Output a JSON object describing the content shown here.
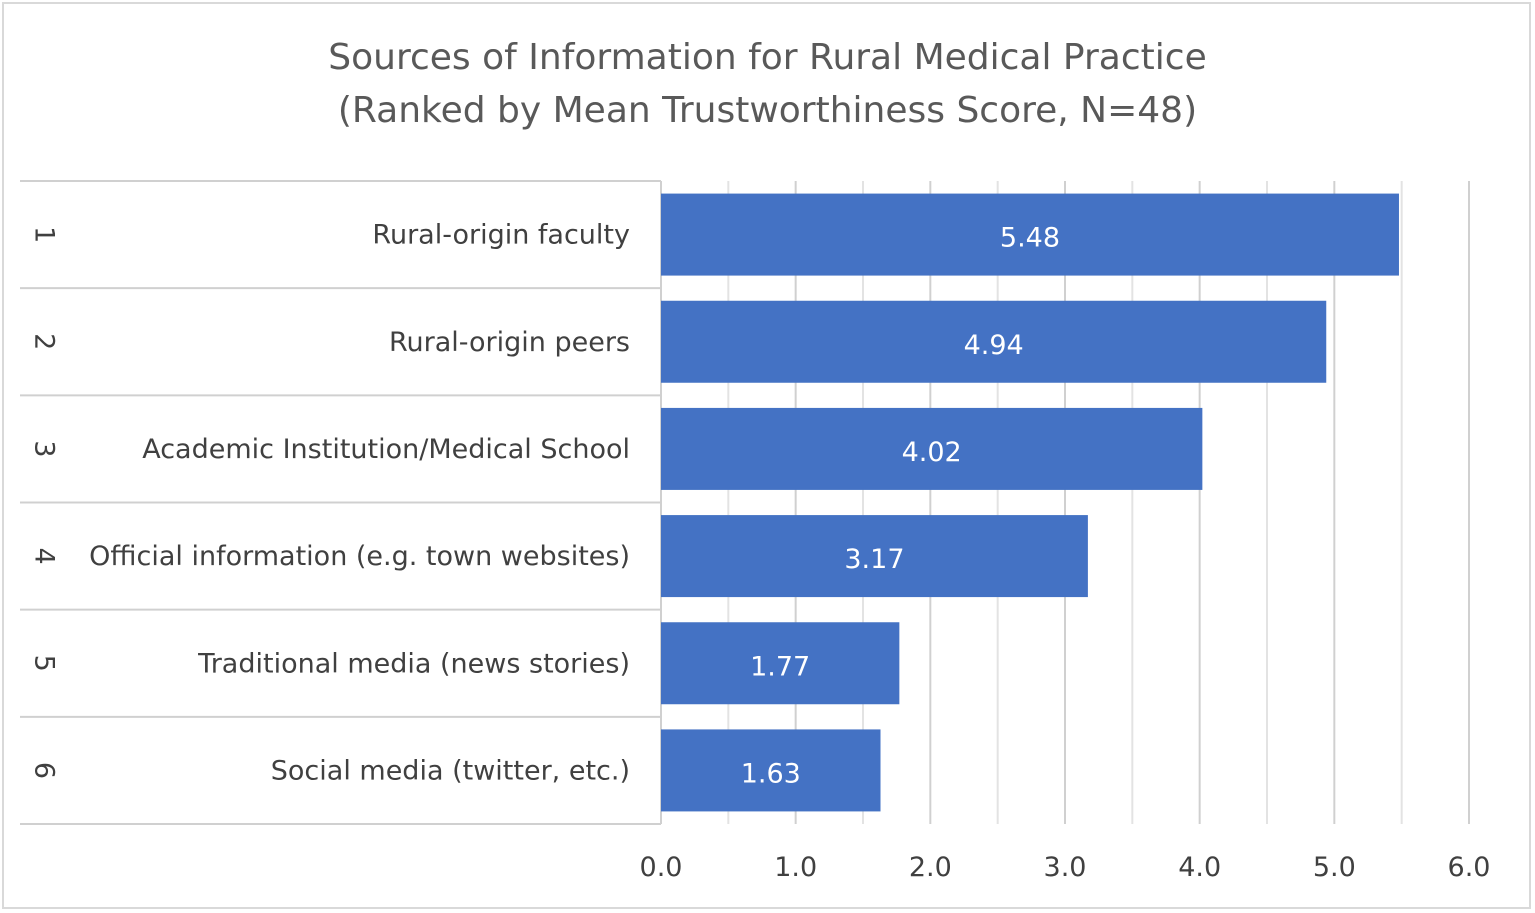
{
  "chart_data": {
    "type": "bar",
    "orientation": "horizontal",
    "title": "Sources of Information for Rural Medical Practice",
    "subtitle": "(Ranked by Mean Trustworthiness Score, N=48)",
    "ranks": [
      "1",
      "2",
      "3",
      "4",
      "5",
      "6"
    ],
    "categories": [
      "Rural-origin faculty",
      "Rural-origin peers",
      "Academic Institution/Medical School",
      "Official information (e.g. town websites)",
      "Traditional media (news stories)",
      "Social media (twitter, etc.)"
    ],
    "values": [
      5.48,
      4.94,
      4.02,
      3.17,
      1.77,
      1.63
    ],
    "data_labels": [
      "5.48",
      "4.94",
      "4.02",
      "3.17",
      "1.77",
      "1.63"
    ],
    "xlim": [
      0,
      6
    ],
    "x_ticks": [
      "0.0",
      "1.0",
      "2.0",
      "3.0",
      "4.0",
      "5.0",
      "6.0"
    ],
    "xlabel": "",
    "ylabel": "",
    "grid": true,
    "legend": "none",
    "bar_color": "#4472c4"
  }
}
